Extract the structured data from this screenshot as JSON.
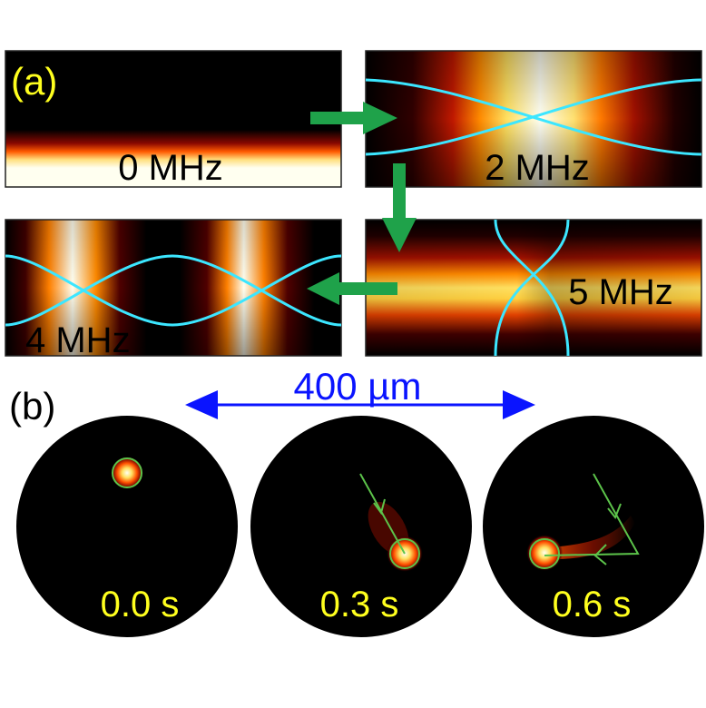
{
  "panel_a": {
    "label": "(a)",
    "frames": [
      {
        "freq": "0 MHz"
      },
      {
        "freq": "2 MHz"
      },
      {
        "freq": "5 MHz"
      },
      {
        "freq": "4 MHz"
      }
    ]
  },
  "panel_b": {
    "label": "(b)",
    "scale_bar": "400 µm",
    "snapshots": [
      {
        "time": "0.0 s"
      },
      {
        "time": "0.3 s"
      },
      {
        "time": "0.6 s"
      }
    ]
  },
  "colors": {
    "heatmap_low": "#000000",
    "heatmap_mid": "#c81400",
    "heatmap_high": "#ffffe0",
    "mode_curve": "#3ce6ff",
    "flow_arrow": "#1fa24a",
    "scale_bar": "#0a14ff",
    "trajectory": "#5cc34a",
    "label_yellow": "#ffff1e"
  }
}
